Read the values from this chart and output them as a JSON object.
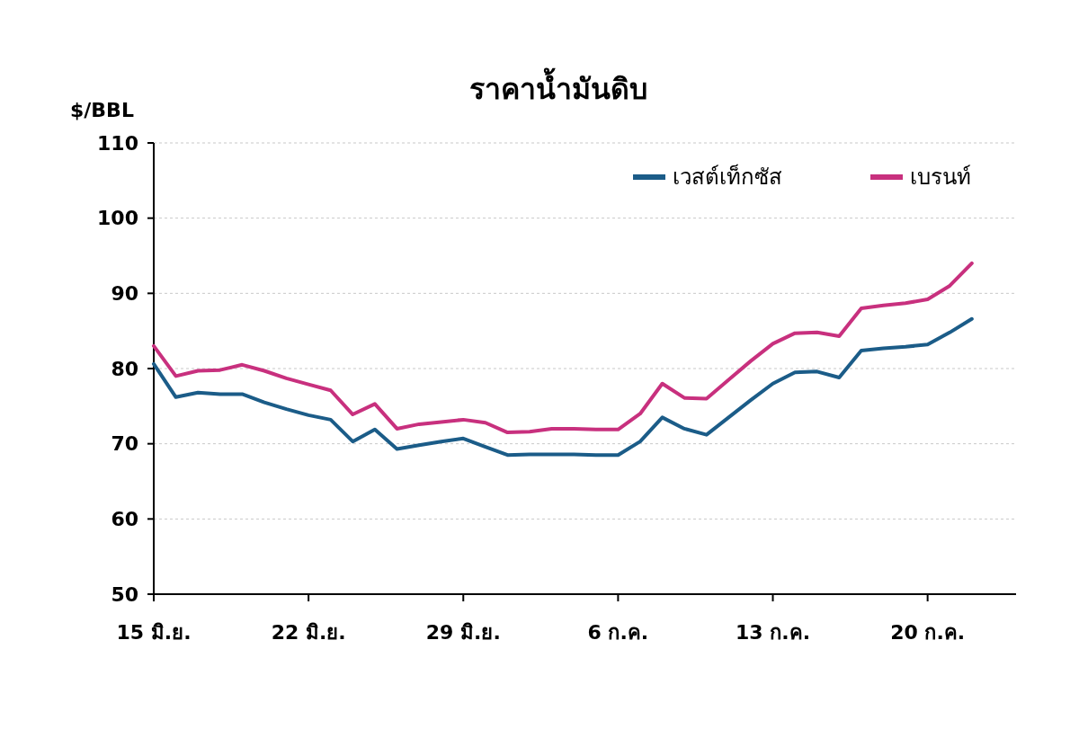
{
  "chart_data": {
    "type": "line",
    "title": "ราคาน้ำมันดิบ",
    "ylabel": "$/BBL",
    "x": [
      "--06-15",
      "--06-16",
      "--06-17",
      "--06-18",
      "--06-19",
      "--06-20",
      "--06-21",
      "--06-22",
      "--06-23",
      "--06-24",
      "--06-25",
      "--06-26",
      "--06-27",
      "--06-28",
      "--06-29",
      "--06-30",
      "--07-01",
      "--07-02",
      "--07-03",
      "--07-04",
      "--07-05",
      "--07-06",
      "--07-07",
      "--07-08",
      "--07-09",
      "--07-10",
      "--07-11",
      "--07-12",
      "--07-13",
      "--07-14",
      "--07-15",
      "--07-16",
      "--07-17",
      "--07-18",
      "--07-19",
      "--07-20",
      "--07-21",
      "--07-22"
    ],
    "series": [
      {
        "name": "เวสต์เท็กซัส",
        "color": "#1b5c88",
        "values": [
          80.6,
          76.2,
          76.8,
          76.6,
          76.6,
          75.5,
          74.6,
          73.8,
          73.2,
          70.3,
          71.9,
          69.3,
          69.8,
          70.3,
          70.7,
          69.6,
          68.5,
          68.6,
          68.6,
          68.6,
          68.5,
          68.5,
          70.3,
          73.5,
          72,
          71.2,
          73.5,
          75.8,
          78,
          79.5,
          79.6,
          78.8,
          82.4,
          82.7,
          82.9,
          83.2,
          84.8,
          86.6
        ]
      },
      {
        "name": "เบรนท์",
        "color": "#c8307e",
        "values": [
          83,
          79,
          79.7,
          79.8,
          80.5,
          79.7,
          78.7,
          77.9,
          77.1,
          73.9,
          75.3,
          72,
          72.6,
          72.9,
          73.2,
          72.8,
          71.5,
          71.6,
          72,
          72,
          71.9,
          71.9,
          74,
          78,
          76.1,
          76,
          78.5,
          81,
          83.3,
          84.7,
          84.8,
          84.3,
          88,
          88.4,
          88.7,
          89.2,
          91,
          94
        ]
      }
    ],
    "xlim": [
      "--06-15",
      "--07-24"
    ],
    "xticks": [
      {
        "value": "--06-15",
        "label": "15 มิ.ย."
      },
      {
        "value": "--06-22",
        "label": "22 มิ.ย."
      },
      {
        "value": "--06-29",
        "label": "29 มิ.ย."
      },
      {
        "value": "--07-06",
        "label": "6 ก.ค."
      },
      {
        "value": "--07-13",
        "label": "13 ก.ค."
      },
      {
        "value": "--07-20",
        "label": "20 ก.ค."
      }
    ],
    "ylim": [
      50,
      110
    ],
    "yticks": [
      50,
      60,
      70,
      80,
      90,
      100,
      110
    ],
    "grid": "y",
    "legend": "top right",
    "marker": "none",
    "line_style": "solid"
  }
}
